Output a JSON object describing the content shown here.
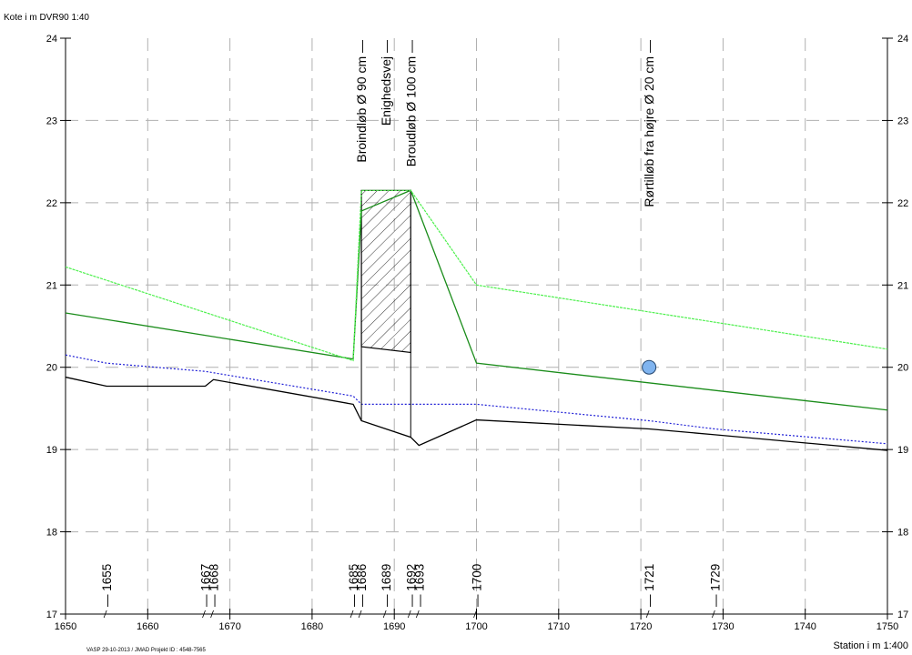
{
  "chart_data": {
    "type": "line",
    "ylabel": "Kote i m DVR90 1:40",
    "xlabel": "Station i m 1:400",
    "footer": "VASP 29-10-2013 / JMAD Projekt ID : 4548-7565",
    "xlim": [
      1650,
      1750
    ],
    "ylim": [
      17,
      24
    ],
    "x_ticks": [
      1650,
      1660,
      1670,
      1680,
      1690,
      1700,
      1710,
      1720,
      1730,
      1740,
      1750
    ],
    "y_ticks": [
      17,
      18,
      19,
      20,
      21,
      22,
      23,
      24
    ],
    "grid": true,
    "series": [
      {
        "style": "solid",
        "color": "#000000",
        "x": [
          1650,
          1655,
          1667,
          1668,
          1685,
          1686,
          1692,
          1693,
          1700,
          1721,
          1729,
          1750
        ],
        "y": [
          19.88,
          19.77,
          19.77,
          19.85,
          19.55,
          19.35,
          19.15,
          19.05,
          19.36,
          19.25,
          19.18,
          18.99
        ]
      },
      {
        "style": "dotted",
        "color": "#1f1fd6",
        "x": [
          1650,
          1655,
          1667,
          1685,
          1686,
          1692,
          1700,
          1721,
          1729,
          1750
        ],
        "y": [
          20.15,
          20.05,
          19.95,
          19.65,
          19.55,
          19.55,
          19.55,
          19.35,
          19.25,
          19.07
        ]
      },
      {
        "style": "solid",
        "color": "#1a8c1a",
        "x": [
          1650,
          1685,
          1686,
          1692,
          1700,
          1750
        ],
        "y": [
          20.66,
          20.1,
          21.9,
          22.15,
          20.05,
          19.48
        ]
      },
      {
        "style": "dashed-light",
        "color": "#4ef04e",
        "x": [
          1650,
          1685,
          1686,
          1692,
          1700,
          1750
        ],
        "y": [
          21.22,
          20.08,
          22.15,
          22.15,
          21.0,
          20.22
        ]
      }
    ],
    "structure": {
      "x_start": 1686,
      "x_end": 1692,
      "top": 22.15,
      "bottom_start": 20.25,
      "bottom_end": 20.18
    },
    "point": {
      "x": 1721,
      "y": 20.0,
      "color": "#80b4ef"
    },
    "station_labels": [
      {
        "x": 1655,
        "label": "1655"
      },
      {
        "x": 1667,
        "label": "1667"
      },
      {
        "x": 1668,
        "label": "1668"
      },
      {
        "x": 1685,
        "label": "1685"
      },
      {
        "x": 1686,
        "label": "1686"
      },
      {
        "x": 1689,
        "label": "1689"
      },
      {
        "x": 1692,
        "label": "1692"
      },
      {
        "x": 1693,
        "label": "1693"
      },
      {
        "x": 1700,
        "label": "1700"
      },
      {
        "x": 1721,
        "label": "1721"
      },
      {
        "x": 1729,
        "label": "1729"
      }
    ],
    "annotations": [
      {
        "x": 1686,
        "label": "Broindløb Ø 90 cm"
      },
      {
        "x": 1689,
        "label": "Enighedsvej"
      },
      {
        "x": 1692,
        "label": "Broudløb Ø 100 cm"
      },
      {
        "x": 1721,
        "label": "Rørtilløb fra højre Ø 20 cm"
      }
    ]
  }
}
